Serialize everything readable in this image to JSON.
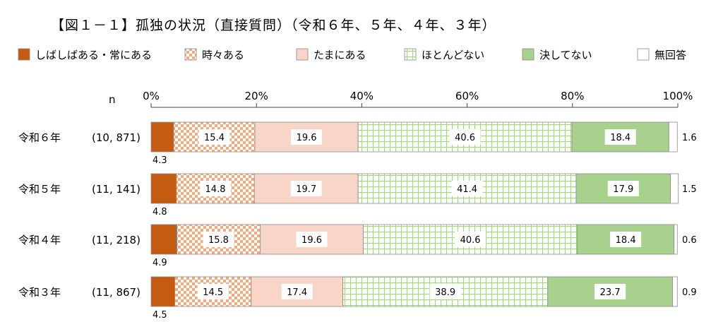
{
  "chart_data": {
    "type": "bar",
    "orientation": "horizontal",
    "stacked": true,
    "title": "【図１－１】孤独の状況（直接質問）（令和６年、５年、４年、３年）",
    "n_label": "n",
    "x_ticks": [
      "0%",
      "20%",
      "40%",
      "60%",
      "80%",
      "100%"
    ],
    "xlim": [
      0,
      100
    ],
    "legend_position": "top",
    "categories": [
      "令和６年",
      "令和５年",
      "令和４年",
      "令和３年"
    ],
    "n_values": [
      "(10, 871)",
      "(11, 141)",
      "(11, 218)",
      "(11, 867)"
    ],
    "series": [
      {
        "name": "しばしばある・常にある",
        "color": "#c55a11",
        "pattern": "solid",
        "values": [
          4.3,
          4.8,
          4.9,
          4.5
        ]
      },
      {
        "name": "時々ある",
        "color": "#f5a97d",
        "pattern": "checker",
        "values": [
          15.4,
          14.8,
          15.8,
          14.5
        ]
      },
      {
        "name": "たまにある",
        "color": "#f8d5c7",
        "pattern": "solid",
        "values": [
          19.6,
          19.7,
          19.6,
          17.4
        ]
      },
      {
        "name": "ほとんどない",
        "color": "#a9d18e",
        "pattern": "grid",
        "values": [
          40.6,
          41.4,
          40.6,
          38.9
        ]
      },
      {
        "name": "決してない",
        "color": "#a9d18e",
        "pattern": "solid",
        "values": [
          18.4,
          17.9,
          18.4,
          23.7
        ]
      },
      {
        "name": "無回答",
        "color": "#ffffff",
        "pattern": "solid",
        "values": [
          1.6,
          1.5,
          0.6,
          0.9
        ]
      }
    ]
  }
}
